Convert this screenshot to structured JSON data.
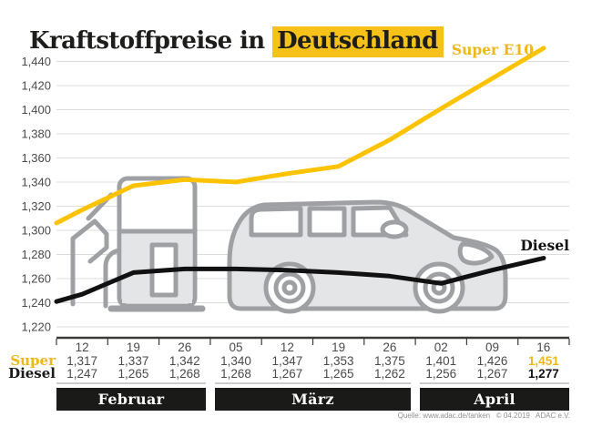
{
  "title": {
    "prefix": "Kraftstoffpreise in ",
    "highlight": "Deutschland"
  },
  "labels": {
    "super_line": "Super E10",
    "diesel_line": "Diesel"
  },
  "chart_data": {
    "type": "line",
    "title": "Kraftstoffpreise in Deutschland",
    "x_tick_labels": [
      "12",
      "19",
      "26",
      "05",
      "12",
      "19",
      "26",
      "02",
      "09",
      "16"
    ],
    "x_groups": [
      {
        "label": "Februar",
        "count": 3
      },
      {
        "label": "März",
        "count": 4
      },
      {
        "label": "April",
        "count": 3
      }
    ],
    "ylim": [
      1.22,
      1.44
    ],
    "y_tick_step": 0.02,
    "grid": true,
    "value_format": "decimal-comma-3",
    "series": [
      {
        "name": "Super E10",
        "color": "#FDC300",
        "values": [
          1.317,
          1.337,
          1.342,
          1.34,
          1.347,
          1.353,
          1.375,
          1.401,
          1.426,
          1.451
        ],
        "edge_start": 1.306
      },
      {
        "name": "Diesel",
        "color": "#111111",
        "values": [
          1.247,
          1.265,
          1.268,
          1.268,
          1.267,
          1.265,
          1.262,
          1.256,
          1.267,
          1.277
        ],
        "edge_start": 1.241
      }
    ]
  },
  "table": {
    "super_row_label": "Super",
    "diesel_row_label": "Diesel"
  },
  "source": "Quelle: www.adac.de/tanken   © 04.2019   ADAC e.V.",
  "colors": {
    "accent_yellow_line": "#FDC300",
    "accent_yellow_text": "#EFB71C",
    "title_highlight": "#F6C21A",
    "diesel_black": "#111111",
    "grid_gray": "#dcdcdc",
    "axis_dark": "#3a3a39",
    "label_gray": "#4a4a4a",
    "illustration_stroke": "#9EA0A3",
    "illustration_fill": "#E4E5E6",
    "month_band_bg": "#1A1A18"
  }
}
